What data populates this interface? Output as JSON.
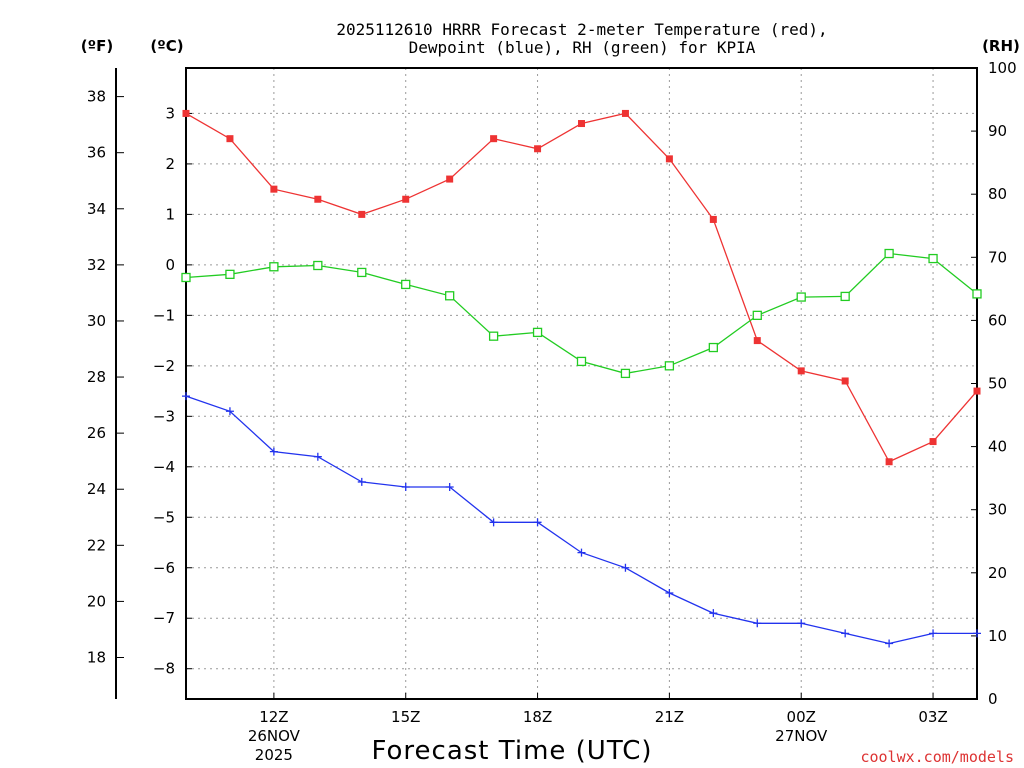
{
  "chart_data": {
    "type": "line",
    "title_line1": "2025112610 HRRR Forecast 2-meter Temperature (red),",
    "title_line2": "Dewpoint (blue), RH (green) for KPIA",
    "xlabel": "Forecast Time (UTC)",
    "credit": "coolwx.com/models",
    "units": {
      "f": "(ºF)",
      "c": "(ºC)",
      "rh": "(RH)"
    },
    "x_hours": [
      10,
      11,
      12,
      13,
      14,
      15,
      16,
      17,
      18,
      19,
      20,
      21,
      22,
      23,
      24,
      25,
      26,
      27,
      28
    ],
    "x_ticks": [
      {
        "hour": 12,
        "label": "12Z",
        "date": "26NOV",
        "year": "2025"
      },
      {
        "hour": 15,
        "label": "15Z"
      },
      {
        "hour": 18,
        "label": "18Z"
      },
      {
        "hour": 21,
        "label": "21Z"
      },
      {
        "hour": 24,
        "label": "00Z",
        "date": "27NOV"
      },
      {
        "hour": 27,
        "label": "03Z"
      }
    ],
    "xlim": [
      10,
      28
    ],
    "ylim_c": [
      -8.6,
      3.9
    ],
    "ylim_rh": [
      0,
      100
    ],
    "f_ticks": [
      "18",
      "20",
      "22",
      "24",
      "26",
      "28",
      "30",
      "32",
      "34",
      "36",
      "38"
    ],
    "c_ticks": [
      "−8",
      "−7",
      "−6",
      "−5",
      "−4",
      "−3",
      "−2",
      "−1",
      "0",
      "1",
      "2",
      "3"
    ],
    "rh_ticks": [
      "0",
      "10",
      "20",
      "30",
      "40",
      "50",
      "60",
      "70",
      "80",
      "90",
      "100"
    ],
    "series": [
      {
        "name": "Temperature",
        "color": "#ee3333",
        "marker": "filled-square",
        "values": [
          3.0,
          2.5,
          1.5,
          1.3,
          1.0,
          1.3,
          1.7,
          2.5,
          2.3,
          2.8,
          3.0,
          2.1,
          0.9,
          -1.5,
          -2.1,
          -2.3,
          -3.9,
          -3.5,
          -2.5
        ]
      },
      {
        "name": "Dewpoint",
        "color": "#2233ee",
        "marker": "plus",
        "values": [
          -2.6,
          -2.9,
          -3.7,
          -3.8,
          -4.3,
          -4.4,
          -4.4,
          -5.1,
          -5.1,
          -5.7,
          -6.0,
          -6.5,
          -6.9,
          -7.1,
          -7.1,
          -7.3,
          -7.5,
          -7.3,
          -7.3
        ]
      },
      {
        "name": "RH",
        "color": "#22cc22",
        "marker": "open-square",
        "axis": "rh",
        "values": [
          66.8,
          67.3,
          68.5,
          68.7,
          67.6,
          65.7,
          63.9,
          57.5,
          58.1,
          53.5,
          51.6,
          52.8,
          55.7,
          60.8,
          63.7,
          63.8,
          70.6,
          69.8,
          64.2
        ]
      }
    ]
  }
}
